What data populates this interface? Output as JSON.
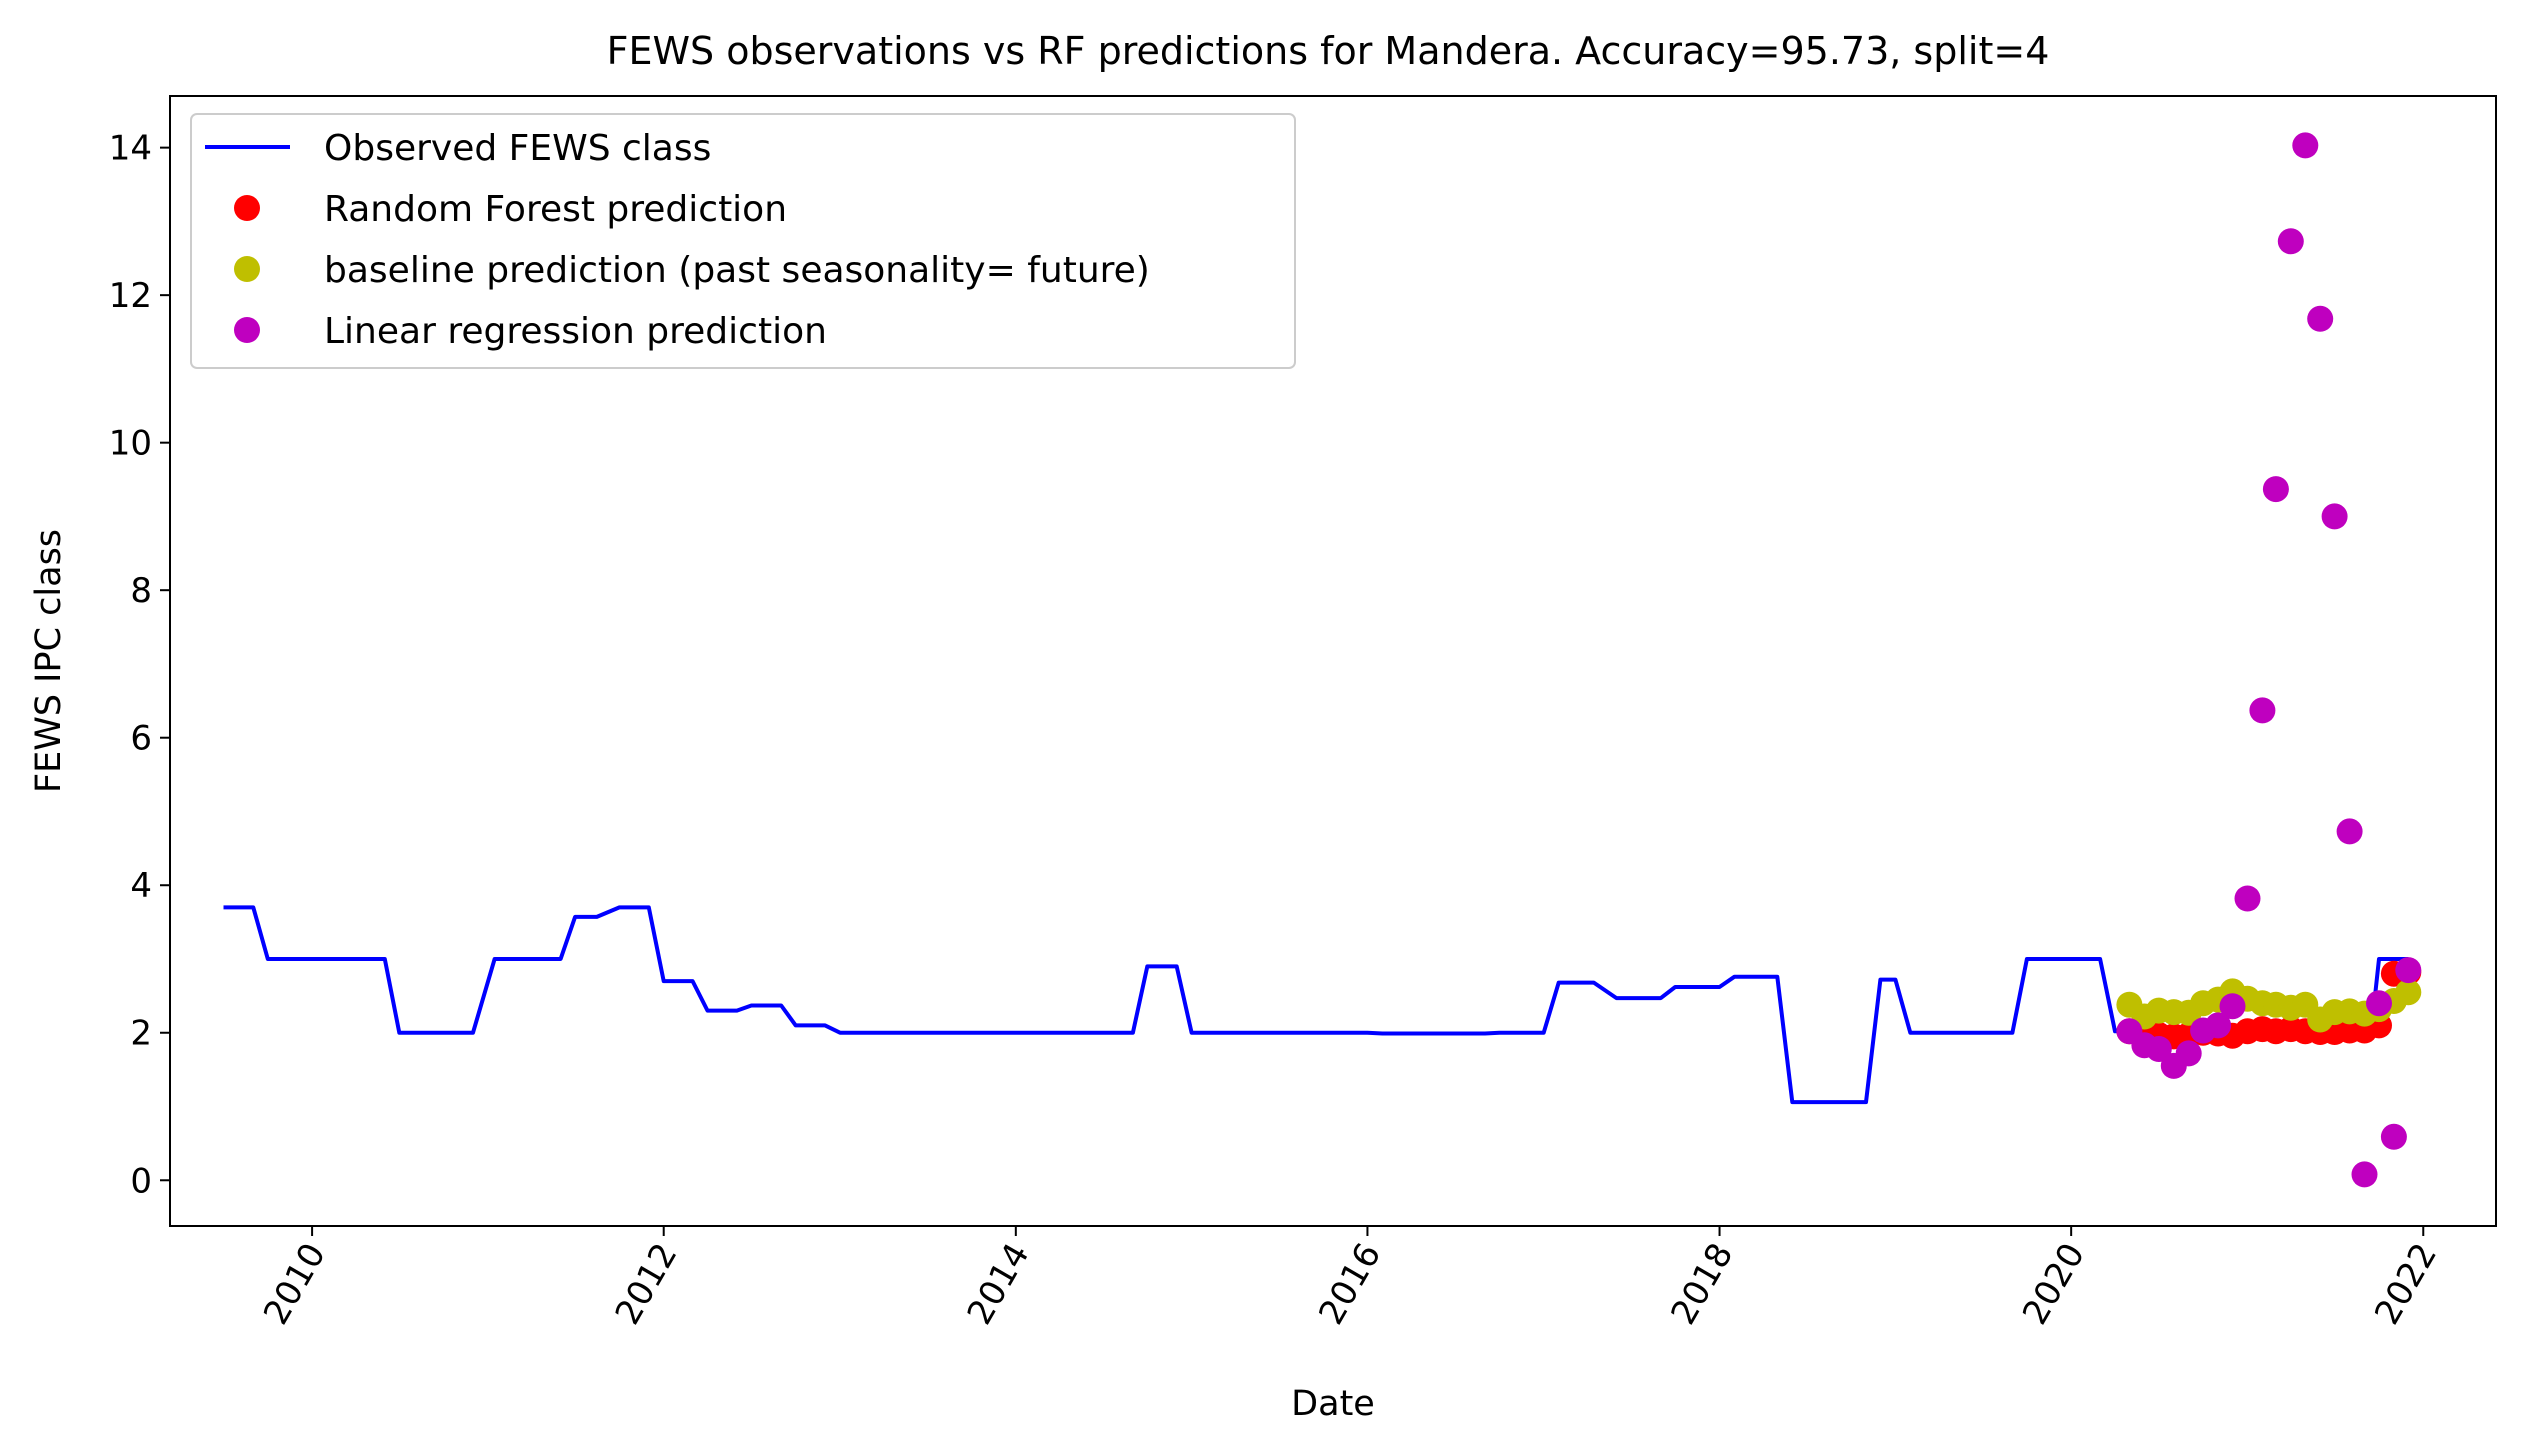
{
  "chart_data": {
    "type": "line",
    "title": "FEWS observations vs RF predictions for Mandera. Accuracy=95.73, split=4",
    "xlabel": "Date",
    "ylabel": "FEWS IPC class",
    "xlim": [
      "2009-03-12",
      "2022-06-01"
    ],
    "ylim": [
      -0.62,
      14.7
    ],
    "x_ticks": [
      "2010",
      "2012",
      "2014",
      "2016",
      "2018",
      "2020",
      "2022"
    ],
    "y_ticks": [
      "0",
      "2",
      "4",
      "6",
      "8",
      "10",
      "12",
      "14"
    ],
    "grid": false,
    "legend_position": "upper-left",
    "series": [
      {
        "name": "Observed FEWS class",
        "kind": "line",
        "color": "#0000ff",
        "points": [
          {
            "x": "2009-07-01",
            "y": 3.7
          },
          {
            "x": "2009-09-01",
            "y": 3.7
          },
          {
            "x": "2009-10-01",
            "y": 3.0
          },
          {
            "x": "2010-06-01",
            "y": 3.0
          },
          {
            "x": "2010-07-01",
            "y": 2.0
          },
          {
            "x": "2010-12-01",
            "y": 2.0
          },
          {
            "x": "2011-01-15",
            "y": 3.0
          },
          {
            "x": "2011-06-01",
            "y": 3.0
          },
          {
            "x": "2011-07-01",
            "y": 3.57
          },
          {
            "x": "2011-08-15",
            "y": 3.57
          },
          {
            "x": "2011-10-01",
            "y": 3.7
          },
          {
            "x": "2011-12-01",
            "y": 3.7
          },
          {
            "x": "2012-01-01",
            "y": 2.7
          },
          {
            "x": "2012-03-01",
            "y": 2.7
          },
          {
            "x": "2012-04-01",
            "y": 2.3
          },
          {
            "x": "2012-06-01",
            "y": 2.3
          },
          {
            "x": "2012-07-01",
            "y": 2.37
          },
          {
            "x": "2012-09-01",
            "y": 2.37
          },
          {
            "x": "2012-10-01",
            "y": 2.1
          },
          {
            "x": "2012-12-01",
            "y": 2.1
          },
          {
            "x": "2013-01-01",
            "y": 2.0
          },
          {
            "x": "2014-09-01",
            "y": 2.0
          },
          {
            "x": "2014-10-01",
            "y": 2.9
          },
          {
            "x": "2014-12-01",
            "y": 2.9
          },
          {
            "x": "2015-01-01",
            "y": 2.0
          },
          {
            "x": "2016-01-01",
            "y": 2.0
          },
          {
            "x": "2016-02-01",
            "y": 1.99
          },
          {
            "x": "2016-09-01",
            "y": 1.99
          },
          {
            "x": "2016-10-01",
            "y": 2.0
          },
          {
            "x": "2017-01-01",
            "y": 2.0
          },
          {
            "x": "2017-02-01",
            "y": 2.68
          },
          {
            "x": "2017-04-15",
            "y": 2.68
          },
          {
            "x": "2017-06-01",
            "y": 2.47
          },
          {
            "x": "2017-09-01",
            "y": 2.47
          },
          {
            "x": "2017-10-01",
            "y": 2.62
          },
          {
            "x": "2018-01-01",
            "y": 2.62
          },
          {
            "x": "2018-02-01",
            "y": 2.76
          },
          {
            "x": "2018-05-01",
            "y": 2.76
          },
          {
            "x": "2018-06-01",
            "y": 1.06
          },
          {
            "x": "2018-11-01",
            "y": 1.06
          },
          {
            "x": "2018-12-01",
            "y": 2.72
          },
          {
            "x": "2019-01-01",
            "y": 2.72
          },
          {
            "x": "2019-02-01",
            "y": 2.0
          },
          {
            "x": "2019-09-01",
            "y": 2.0
          },
          {
            "x": "2019-10-01",
            "y": 3.0
          },
          {
            "x": "2020-03-01",
            "y": 3.0
          },
          {
            "x": "2020-04-01",
            "y": 2.02
          },
          {
            "x": "2021-09-15",
            "y": 2.02
          },
          {
            "x": "2021-10-01",
            "y": 3.0
          },
          {
            "x": "2021-12-01",
            "y": 3.0
          }
        ]
      },
      {
        "name": "Random Forest prediction",
        "kind": "scatter",
        "color": "#ff0000",
        "points": [
          {
            "x": "2020-05-01",
            "y": 2.02
          },
          {
            "x": "2020-06-01",
            "y": 1.93
          },
          {
            "x": "2020-07-01",
            "y": 1.97
          },
          {
            "x": "2020-08-01",
            "y": 1.95
          },
          {
            "x": "2020-09-01",
            "y": 1.97
          },
          {
            "x": "2020-10-01",
            "y": 2.0
          },
          {
            "x": "2020-11-01",
            "y": 1.99
          },
          {
            "x": "2020-12-01",
            "y": 1.96
          },
          {
            "x": "2021-01-01",
            "y": 2.02
          },
          {
            "x": "2021-02-01",
            "y": 2.05
          },
          {
            "x": "2021-03-01",
            "y": 2.02
          },
          {
            "x": "2021-04-01",
            "y": 2.05
          },
          {
            "x": "2021-05-01",
            "y": 2.02
          },
          {
            "x": "2021-06-01",
            "y": 2.01
          },
          {
            "x": "2021-07-01",
            "y": 2.01
          },
          {
            "x": "2021-08-01",
            "y": 2.03
          },
          {
            "x": "2021-09-01",
            "y": 2.03
          },
          {
            "x": "2021-10-01",
            "y": 2.1
          },
          {
            "x": "2021-11-01",
            "y": 2.8
          },
          {
            "x": "2021-12-01",
            "y": 2.82
          }
        ]
      },
      {
        "name": "baseline prediction (past seasonality= future)",
        "kind": "scatter",
        "color": "#bfbf00",
        "points": [
          {
            "x": "2020-05-01",
            "y": 2.38
          },
          {
            "x": "2020-06-01",
            "y": 2.22
          },
          {
            "x": "2020-07-01",
            "y": 2.3
          },
          {
            "x": "2020-08-01",
            "y": 2.28
          },
          {
            "x": "2020-09-01",
            "y": 2.27
          },
          {
            "x": "2020-10-01",
            "y": 2.4
          },
          {
            "x": "2020-11-01",
            "y": 2.45
          },
          {
            "x": "2020-12-01",
            "y": 2.56
          },
          {
            "x": "2021-01-01",
            "y": 2.46
          },
          {
            "x": "2021-02-01",
            "y": 2.4
          },
          {
            "x": "2021-03-01",
            "y": 2.38
          },
          {
            "x": "2021-04-01",
            "y": 2.34
          },
          {
            "x": "2021-05-01",
            "y": 2.38
          },
          {
            "x": "2021-06-01",
            "y": 2.18
          },
          {
            "x": "2021-07-01",
            "y": 2.28
          },
          {
            "x": "2021-08-01",
            "y": 2.29
          },
          {
            "x": "2021-09-01",
            "y": 2.26
          },
          {
            "x": "2021-10-01",
            "y": 2.32
          },
          {
            "x": "2021-11-01",
            "y": 2.43
          },
          {
            "x": "2021-12-01",
            "y": 2.55
          }
        ]
      },
      {
        "name": "Linear regression prediction",
        "kind": "scatter",
        "color": "#bf00bf",
        "points": [
          {
            "x": "2020-05-01",
            "y": 2.02
          },
          {
            "x": "2020-06-01",
            "y": 1.83
          },
          {
            "x": "2020-07-01",
            "y": 1.78
          },
          {
            "x": "2020-08-01",
            "y": 1.55
          },
          {
            "x": "2020-09-01",
            "y": 1.72
          },
          {
            "x": "2020-10-01",
            "y": 2.03
          },
          {
            "x": "2020-11-01",
            "y": 2.1
          },
          {
            "x": "2020-12-01",
            "y": 2.36
          },
          {
            "x": "2021-01-01",
            "y": 3.82
          },
          {
            "x": "2021-02-01",
            "y": 6.37
          },
          {
            "x": "2021-03-01",
            "y": 9.37
          },
          {
            "x": "2021-04-01",
            "y": 12.73
          },
          {
            "x": "2021-05-01",
            "y": 14.03
          },
          {
            "x": "2021-06-01",
            "y": 11.68
          },
          {
            "x": "2021-07-01",
            "y": 9.0
          },
          {
            "x": "2021-08-01",
            "y": 4.73
          },
          {
            "x": "2021-09-01",
            "y": 0.08
          },
          {
            "x": "2021-10-01",
            "y": 2.4
          },
          {
            "x": "2021-11-01",
            "y": 0.59
          },
          {
            "x": "2021-12-01",
            "y": 2.85
          }
        ]
      }
    ]
  }
}
